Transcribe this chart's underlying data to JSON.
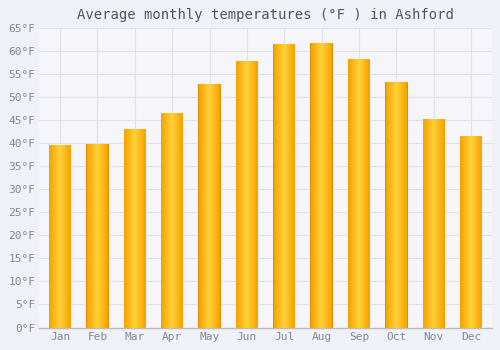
{
  "title": "Average monthly temperatures (°F ) in Ashford",
  "months": [
    "Jan",
    "Feb",
    "Mar",
    "Apr",
    "May",
    "Jun",
    "Jul",
    "Aug",
    "Sep",
    "Oct",
    "Nov",
    "Dec"
  ],
  "values": [
    39.5,
    39.8,
    43.0,
    46.5,
    52.8,
    57.8,
    61.5,
    61.7,
    58.3,
    53.2,
    45.2,
    41.5
  ],
  "bar_color_center": "#FFD050",
  "bar_color_edge": "#F5A000",
  "background_color": "#F0F0F8",
  "plot_bg_color": "#F5F5FA",
  "grid_color": "#E0E0E8",
  "text_color": "#888888",
  "title_color": "#555555",
  "ylim": [
    0,
    65
  ],
  "yticks": [
    0,
    5,
    10,
    15,
    20,
    25,
    30,
    35,
    40,
    45,
    50,
    55,
    60,
    65
  ],
  "title_fontsize": 10,
  "tick_fontsize": 8,
  "figsize": [
    5.0,
    3.5
  ],
  "dpi": 100,
  "bar_width": 0.6
}
